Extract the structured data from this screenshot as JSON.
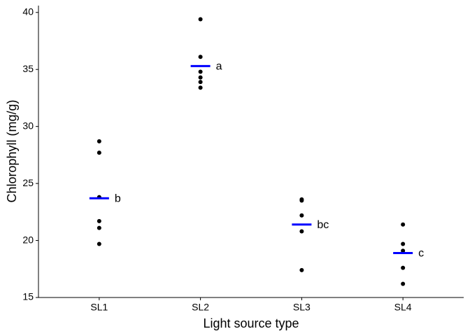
{
  "chart_data": {
    "type": "dot",
    "x_label": "Light source type",
    "y_label": "Chlorophyll (mg/g)",
    "categories": [
      "SL1",
      "SL2",
      "SL3",
      "SL4"
    ],
    "points": [
      [
        28.7,
        27.7,
        23.8,
        21.7,
        21.1,
        19.7
      ],
      [
        39.4,
        36.1,
        34.8,
        34.3,
        33.9,
        33.4
      ],
      [
        23.6,
        23.5,
        22.2,
        20.8,
        17.4
      ],
      [
        21.4,
        19.7,
        19.1,
        17.6,
        16.2
      ]
    ],
    "means": [
      23.7,
      35.3,
      21.4,
      18.9
    ],
    "letters": [
      "b",
      "a",
      "bc",
      "c"
    ],
    "point_color": "#000000",
    "mean_color": "#0000ff",
    "ylim": [
      15,
      40.6
    ],
    "yticks": [
      15,
      20,
      25,
      30,
      35,
      40
    ]
  }
}
